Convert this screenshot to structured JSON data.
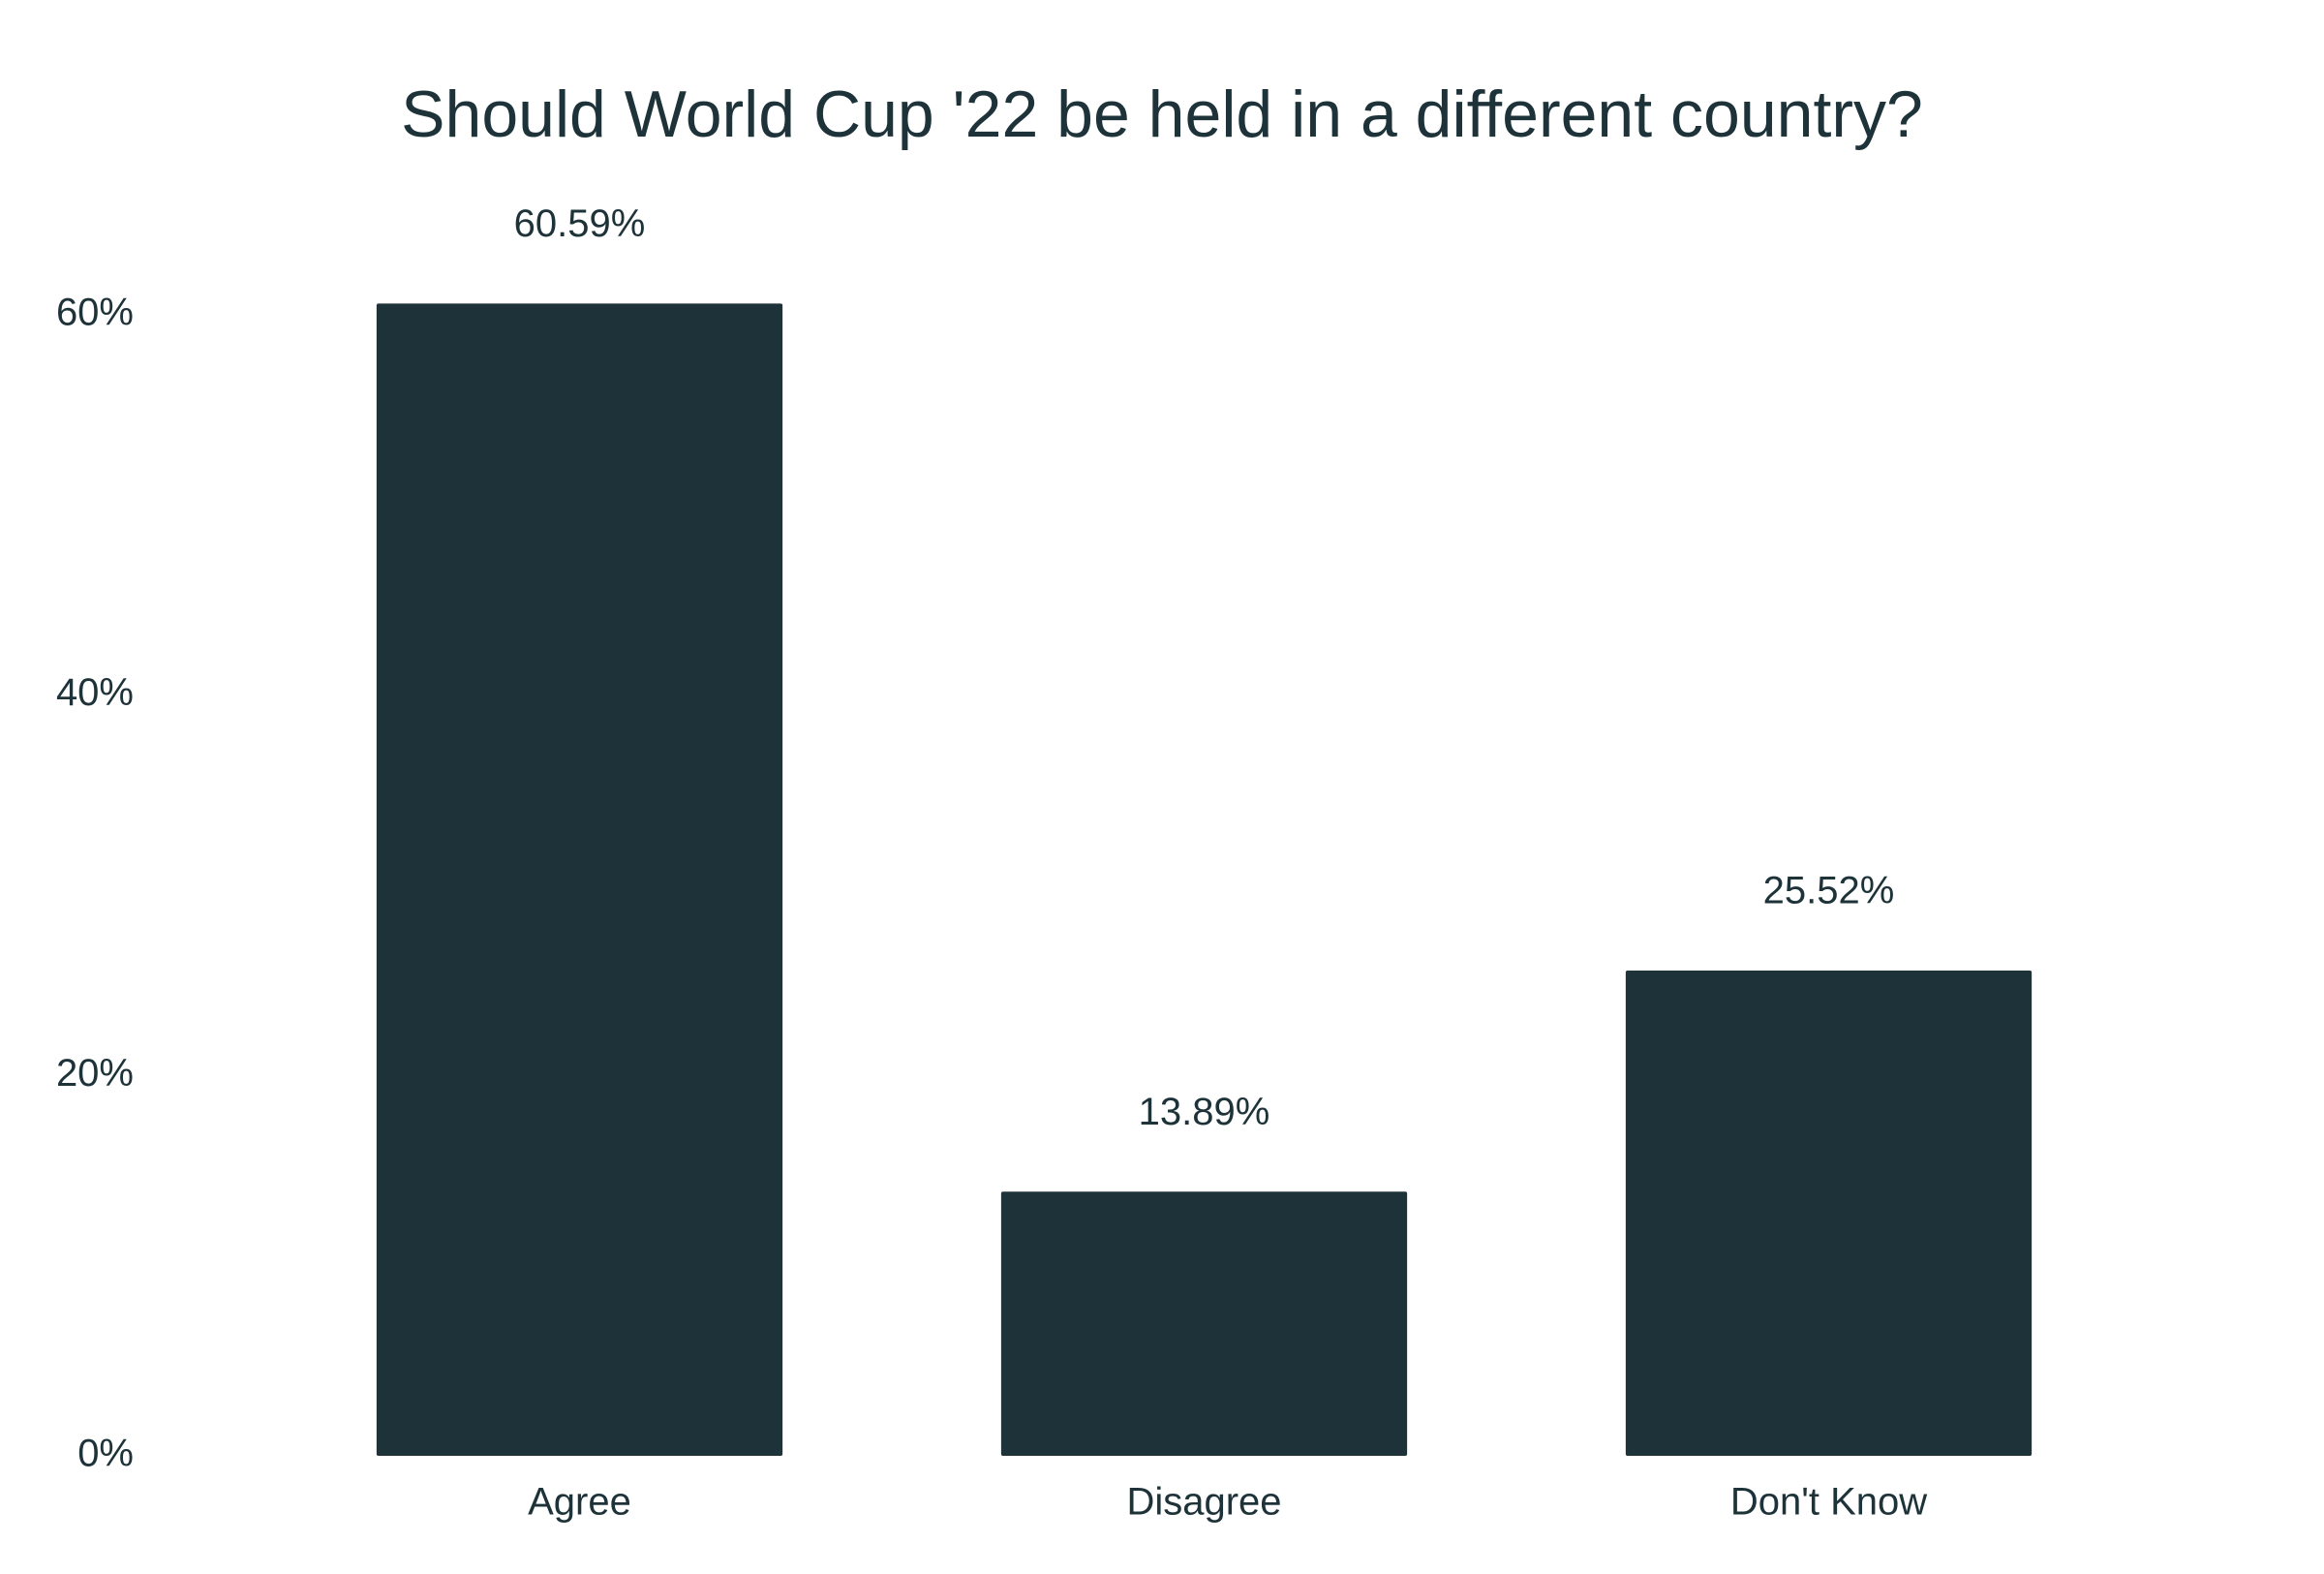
{
  "chart_data": {
    "type": "bar",
    "title": "Should World Cup '22 be held in a different country?",
    "categories": [
      "Agree",
      "Disagree",
      "Don't Know"
    ],
    "values": [
      60.59,
      13.89,
      25.52
    ],
    "value_labels": [
      "60.59%",
      "13.89%",
      "25.52%"
    ],
    "color": "#1e3339",
    "ylim": [
      0,
      60
    ],
    "yticks": [
      {
        "value": 0,
        "label": "0%"
      },
      {
        "value": 20,
        "label": "20%"
      },
      {
        "value": 40,
        "label": "40%"
      },
      {
        "value": 60,
        "label": "60%"
      }
    ],
    "grid": false
  }
}
